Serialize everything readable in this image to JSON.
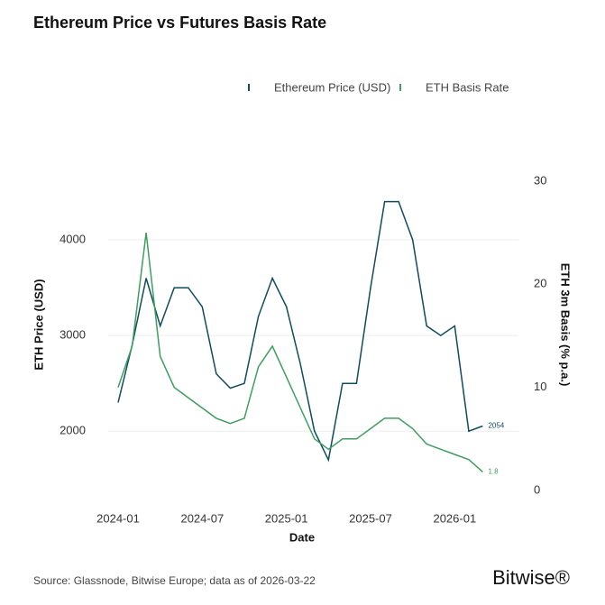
{
  "chart_data": {
    "type": "line",
    "title": "Ethereum Price vs Futures Basis Rate",
    "x_label": "Date",
    "y_label": "ETH Price (USD)",
    "y2_label": "ETH 3m Basis (% p.a.)",
    "x": [
      "2024-01",
      "2024-02",
      "2024-03",
      "2024-04",
      "2024-05",
      "2024-06",
      "2024-07",
      "2024-08",
      "2024-09",
      "2024-10",
      "2024-11",
      "2024-12",
      "2025-01",
      "2025-02",
      "2025-03",
      "2025-04",
      "2025-05",
      "2025-06",
      "2025-07",
      "2025-08",
      "2025-09",
      "2025-10",
      "2025-11",
      "2025-12",
      "2026-01",
      "2026-02",
      "2026-03"
    ],
    "xlim": [
      "2024-01",
      "2026-04"
    ],
    "xticks": [
      "2024-01",
      "2024-07",
      "2025-01",
      "2025-07",
      "2026-01"
    ],
    "ylim": [
      1380,
      4830
    ],
    "yticks": [
      2000,
      3000,
      4000
    ],
    "y2lim": [
      0,
      32
    ],
    "y2ticks": [
      0,
      10,
      20,
      30
    ],
    "grid": true,
    "legend": "top-right",
    "series": [
      {
        "name": "Ethereum Price (USD)",
        "color": "#0f4c5c",
        "values": [
          2300,
          2900,
          3600,
          3100,
          3500,
          3500,
          3300,
          2600,
          2450,
          2500,
          3200,
          3600,
          3300,
          2700,
          2000,
          1700,
          2500,
          2500,
          3500,
          4400,
          4400,
          4000,
          3100,
          3000,
          3100,
          2000,
          2054
        ]
      },
      {
        "name": "ETH Basis Rate",
        "color": "#3d9e5f",
        "axis": "y2",
        "values": [
          10,
          14,
          25,
          13,
          10,
          9,
          8,
          7,
          6.5,
          7,
          12,
          14,
          11,
          8,
          5,
          4,
          5,
          5,
          6,
          7,
          7,
          6,
          4.5,
          4,
          3.5,
          3,
          1.8
        ]
      }
    ],
    "source": "Source: Glassnode, Bitwise Europe; data as of 2026-03-22",
    "brand": "Bitwise®"
  }
}
